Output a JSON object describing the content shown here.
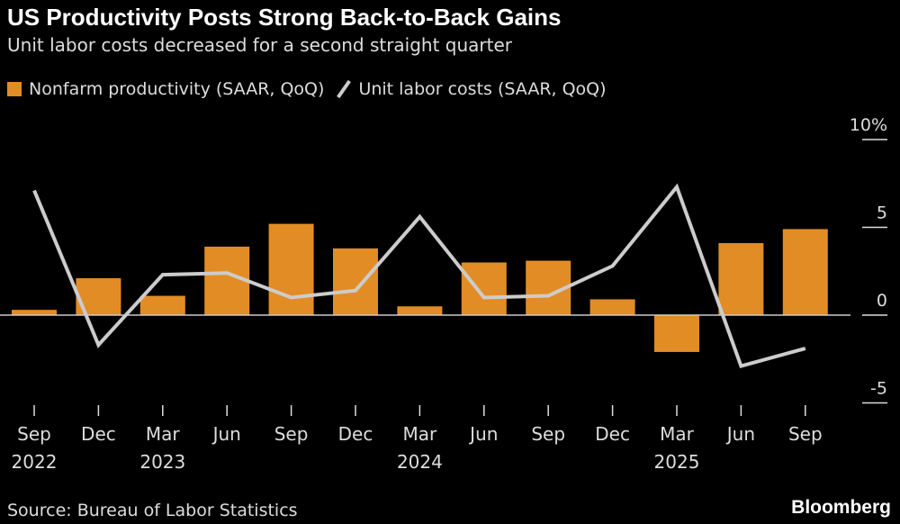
{
  "title": "US Productivity Posts Strong Back-to-Back Gains",
  "subtitle": "Unit labor costs decreased for a second straight quarter",
  "source": "Source: Bureau of Labor Statistics",
  "brand": "Bloomberg",
  "chart_data": {
    "type": "bar",
    "categories": [
      "Sep 2022",
      "Dec",
      "Mar 2023",
      "Jun",
      "Sep",
      "Dec",
      "Mar 2024",
      "Jun",
      "Sep",
      "Dec",
      "Mar 2025",
      "Jun",
      "Sep"
    ],
    "x_tick_labels": [
      [
        "Sep",
        "2022"
      ],
      [
        "Dec",
        ""
      ],
      [
        "Mar",
        "2023"
      ],
      [
        "Jun",
        ""
      ],
      [
        "Sep",
        ""
      ],
      [
        "Dec",
        ""
      ],
      [
        "Mar",
        "2024"
      ],
      [
        "Jun",
        ""
      ],
      [
        "Sep",
        ""
      ],
      [
        "Dec",
        ""
      ],
      [
        "Mar",
        "2025"
      ],
      [
        "Jun",
        ""
      ],
      [
        "Sep",
        ""
      ]
    ],
    "series": [
      {
        "name": "Nonfarm productivity (SAAR, QoQ)",
        "type": "bar",
        "color": "#e28c25",
        "values": [
          0.3,
          2.1,
          1.1,
          3.9,
          5.2,
          3.8,
          0.5,
          3.0,
          3.1,
          0.9,
          -2.1,
          4.1,
          4.9
        ]
      },
      {
        "name": "Unit labor costs (SAAR, QoQ)",
        "type": "line",
        "color": "#cccccc",
        "values": [
          7.1,
          -1.7,
          2.3,
          2.4,
          1.0,
          1.4,
          5.6,
          1.0,
          1.1,
          2.8,
          7.3,
          -2.9,
          -1.9
        ]
      }
    ],
    "y_ticks": [
      {
        "v": 10,
        "label": "10%"
      },
      {
        "v": 5,
        "label": "5"
      },
      {
        "v": 0,
        "label": "0"
      },
      {
        "v": -5,
        "label": "-5"
      }
    ],
    "ylim": [
      -5,
      10
    ],
    "y_axis_position": "right",
    "legend_position": "top-left",
    "grid": false
  }
}
